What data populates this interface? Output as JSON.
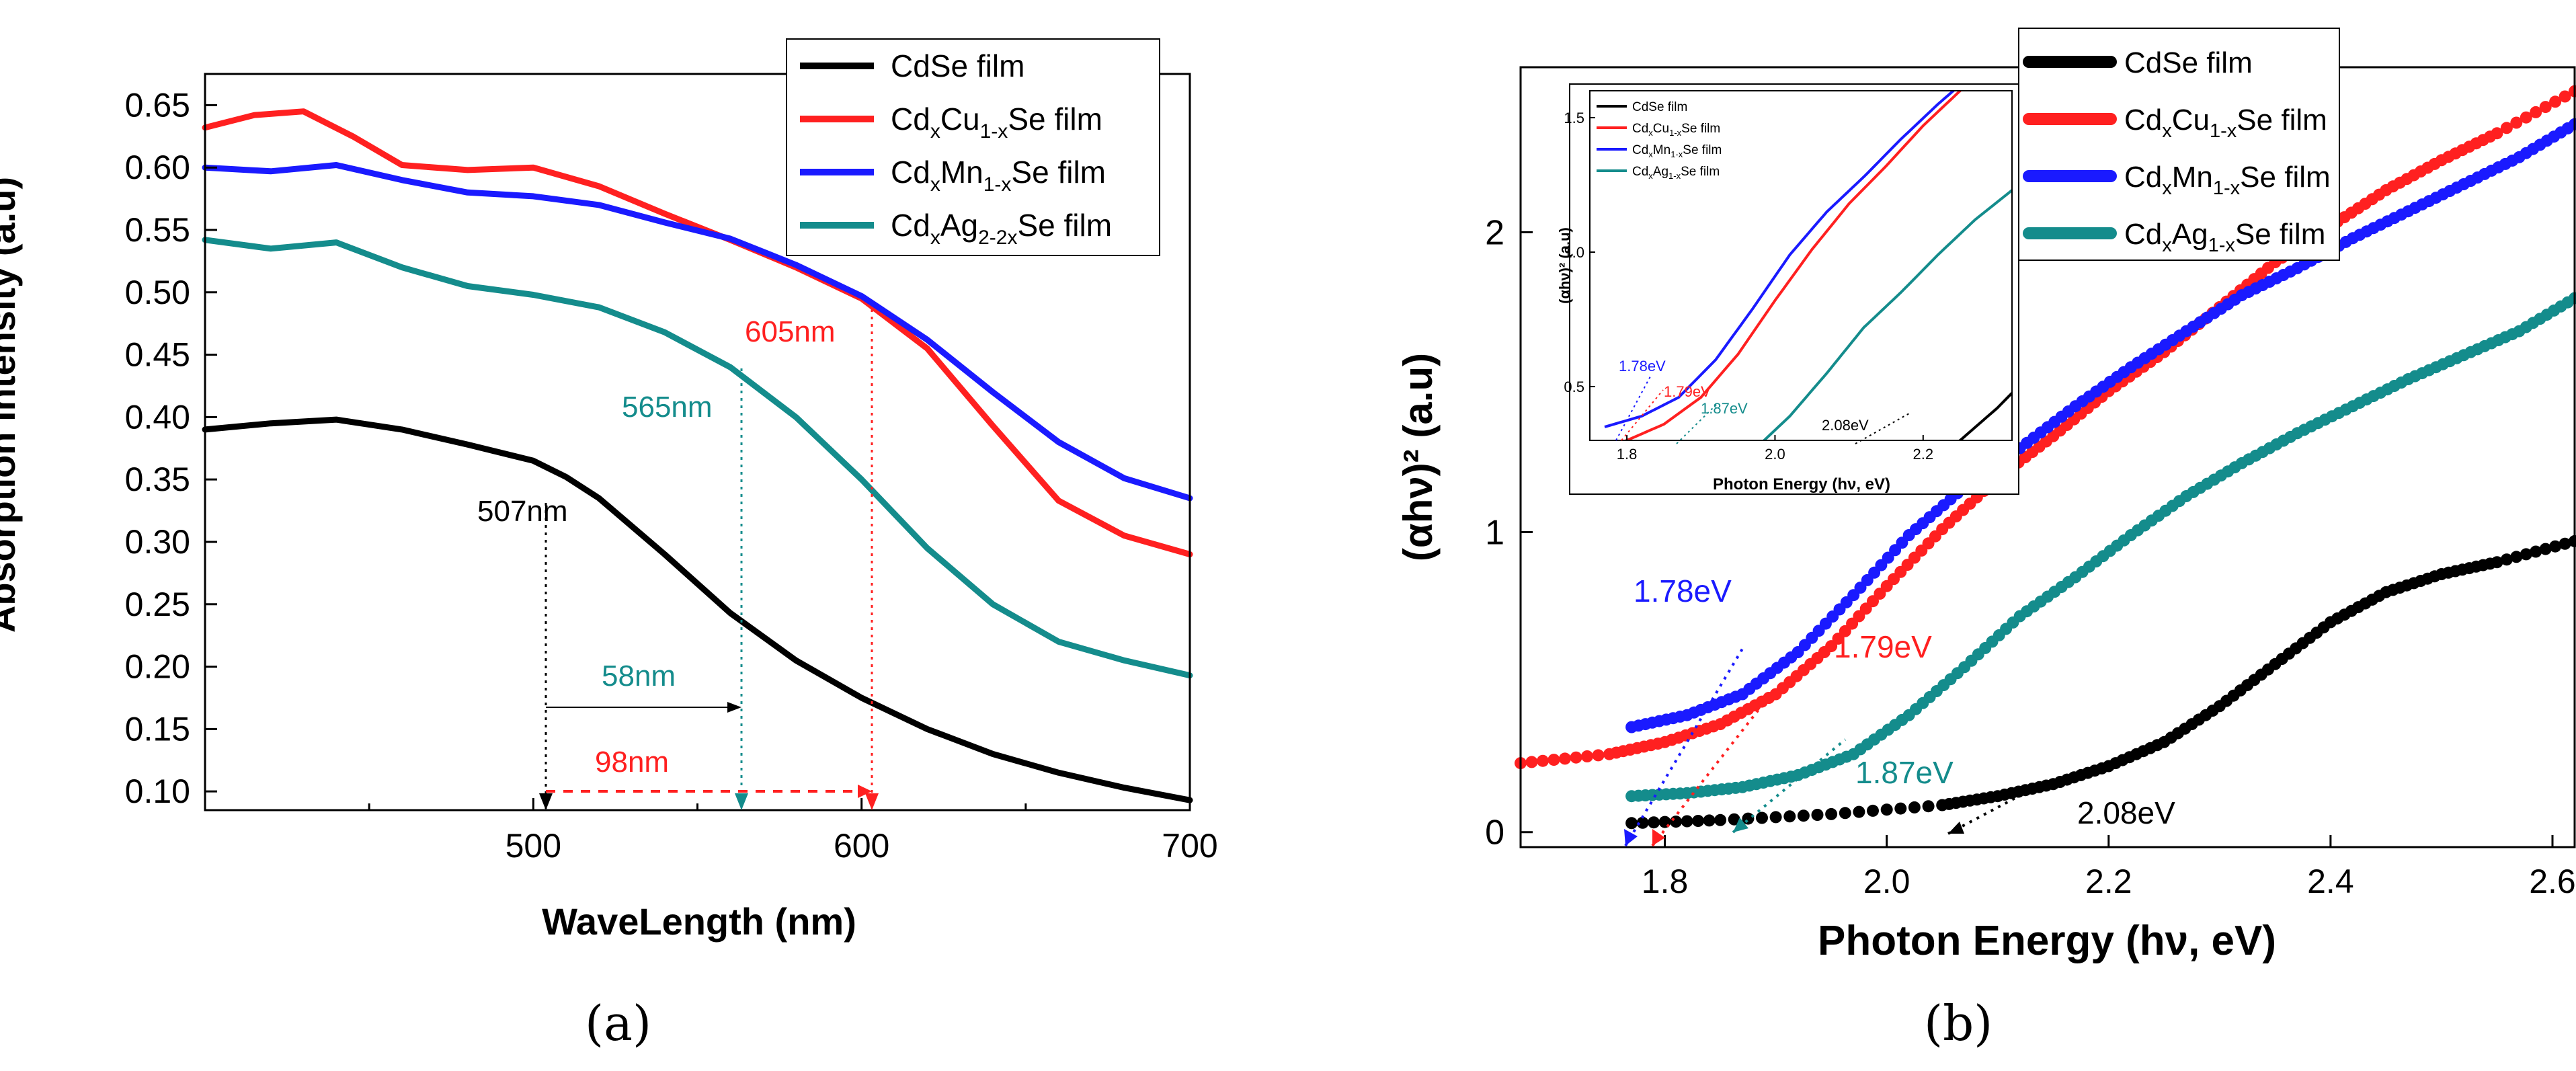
{
  "chart_data": [
    {
      "panel_label": "(a)",
      "type": "line",
      "xlabel": "WaveLength (nm)",
      "ylabel": "Absorption intensity (a.u)",
      "xlim": [
        400,
        700
      ],
      "ylim": [
        0.085,
        0.675
      ],
      "xticks": [
        "500",
        "600",
        "700"
      ],
      "xtick_values": [
        500,
        600,
        700
      ],
      "yticks": [
        "0.10",
        "0.15",
        "0.20",
        "0.25",
        "0.30",
        "0.35",
        "0.40",
        "0.45",
        "0.50",
        "0.55",
        "0.60",
        "0.65"
      ],
      "ytick_values": [
        0.1,
        0.15,
        0.2,
        0.25,
        0.3,
        0.35,
        0.4,
        0.45,
        0.5,
        0.55,
        0.6,
        0.65
      ],
      "legend_position": "top-right",
      "series": [
        {
          "name": "CdSe film",
          "legend": {
            "pre": "CdSe film",
            "sub1": "",
            "mid": "",
            "sub2": "",
            "post": ""
          },
          "color": "#000000",
          "x": [
            400,
            420,
            440,
            460,
            480,
            500,
            510,
            520,
            540,
            560,
            580,
            600,
            620,
            640,
            660,
            680,
            700
          ],
          "y": [
            0.39,
            0.395,
            0.398,
            0.39,
            0.378,
            0.365,
            0.352,
            0.335,
            0.29,
            0.243,
            0.205,
            0.175,
            0.15,
            0.13,
            0.115,
            0.103,
            0.093
          ]
        },
        {
          "name": "CdxCu1-xSe film",
          "legend": {
            "pre": "Cd",
            "sub1": "x",
            "mid": "Cu",
            "sub2": "1-x",
            "post": "Se film"
          },
          "color": "#ff2020",
          "x": [
            400,
            415,
            430,
            445,
            460,
            480,
            500,
            520,
            540,
            560,
            580,
            600,
            620,
            640,
            660,
            680,
            700
          ],
          "y": [
            0.632,
            0.642,
            0.645,
            0.625,
            0.602,
            0.598,
            0.6,
            0.585,
            0.563,
            0.542,
            0.52,
            0.495,
            0.455,
            0.393,
            0.333,
            0.305,
            0.29
          ]
        },
        {
          "name": "CdxMn1-xSe film",
          "legend": {
            "pre": "Cd",
            "sub1": "x",
            "mid": "Mn",
            "sub2": "1-x",
            "post": "Se film"
          },
          "color": "#1a1aff",
          "x": [
            400,
            420,
            440,
            460,
            480,
            500,
            520,
            540,
            560,
            580,
            600,
            620,
            640,
            660,
            680,
            700
          ],
          "y": [
            0.6,
            0.597,
            0.602,
            0.59,
            0.58,
            0.577,
            0.57,
            0.556,
            0.543,
            0.522,
            0.497,
            0.462,
            0.42,
            0.38,
            0.351,
            0.335
          ]
        },
        {
          "name": "CdxAg2-2xSe film",
          "legend": {
            "pre": "Cd",
            "sub1": "x",
            "mid": "Ag",
            "sub2": "2-2x",
            "post": "Se film"
          },
          "color": "#148c8c",
          "x": [
            400,
            420,
            440,
            460,
            480,
            500,
            520,
            540,
            560,
            580,
            600,
            620,
            640,
            660,
            680,
            700
          ],
          "y": [
            0.542,
            0.535,
            0.54,
            0.52,
            0.505,
            0.498,
            0.488,
            0.468,
            0.44,
            0.4,
            0.35,
            0.295,
            0.25,
            0.22,
            0.205,
            0.193
          ]
        }
      ],
      "annotations": [
        {
          "text": "507nm",
          "x": 507,
          "color": "#000000"
        },
        {
          "text": "565nm",
          "x": 565,
          "color": "#148c8c"
        },
        {
          "text": "605nm",
          "x": 605,
          "color": "#ff2020"
        },
        {
          "text": "58nm",
          "color": "#148c8c"
        },
        {
          "text": "98nm",
          "color": "#ff2020"
        }
      ]
    },
    {
      "panel_label": "(b)",
      "type": "scatter",
      "xlabel": "Photon Energy (hν, eV)",
      "ylabel": "(αhν)² (a.u)",
      "xlim": [
        1.67,
        2.62
      ],
      "ylim": [
        -0.05,
        2.55
      ],
      "xticks": [
        "1.8",
        "2.0",
        "2.2",
        "2.4",
        "2.6"
      ],
      "xtick_values": [
        1.8,
        2.0,
        2.2,
        2.4,
        2.6
      ],
      "yticks": [
        "0",
        "1",
        "2"
      ],
      "ytick_values": [
        0,
        1,
        2
      ],
      "legend_position": "top-right",
      "series": [
        {
          "name": "CdSe film",
          "legend": {
            "pre": "CdSe film",
            "sub1": "",
            "mid": "",
            "sub2": "",
            "post": ""
          },
          "color": "#000000",
          "x": [
            1.77,
            1.85,
            1.95,
            2.05,
            2.1,
            2.15,
            2.2,
            2.25,
            2.3,
            2.35,
            2.4,
            2.45,
            2.5,
            2.55,
            2.62
          ],
          "y": [
            0.03,
            0.04,
            0.06,
            0.09,
            0.12,
            0.16,
            0.22,
            0.3,
            0.42,
            0.56,
            0.7,
            0.8,
            0.86,
            0.9,
            0.97
          ]
        },
        {
          "name": "CdxCu1-xSe film",
          "legend": {
            "pre": "Cd",
            "sub1": "x",
            "mid": "Cu",
            "sub2": "1-x",
            "post": "Se film"
          },
          "color": "#ff2020",
          "x": [
            1.67,
            1.75,
            1.8,
            1.85,
            1.9,
            1.95,
            2.0,
            2.05,
            2.1,
            2.15,
            2.2,
            2.25,
            2.3,
            2.35,
            2.4,
            2.45,
            2.5,
            2.55,
            2.62
          ],
          "y": [
            0.23,
            0.26,
            0.3,
            0.36,
            0.46,
            0.62,
            0.82,
            1.01,
            1.18,
            1.32,
            1.47,
            1.6,
            1.75,
            1.9,
            2.02,
            2.14,
            2.24,
            2.33,
            2.47
          ]
        },
        {
          "name": "CdxMn1-xSe film",
          "legend": {
            "pre": "Cd",
            "sub1": "x",
            "mid": "Mn",
            "sub2": "1-x",
            "post": "Se film"
          },
          "color": "#1a1aff",
          "x": [
            1.77,
            1.82,
            1.87,
            1.92,
            1.97,
            2.02,
            2.07,
            2.12,
            2.17,
            2.22,
            2.27,
            2.32,
            2.37,
            2.42,
            2.47,
            2.52,
            2.57,
            2.62
          ],
          "y": [
            0.35,
            0.39,
            0.46,
            0.6,
            0.79,
            0.99,
            1.15,
            1.28,
            1.42,
            1.55,
            1.67,
            1.79,
            1.88,
            1.98,
            2.07,
            2.16,
            2.25,
            2.36
          ]
        },
        {
          "name": "CdxAg1-xSe film",
          "legend": {
            "pre": "Cd",
            "sub1": "x",
            "mid": "Ag",
            "sub2": "1-x",
            "post": "Se film"
          },
          "color": "#148c8c",
          "x": [
            1.77,
            1.82,
            1.87,
            1.92,
            1.97,
            2.02,
            2.07,
            2.12,
            2.17,
            2.22,
            2.27,
            2.32,
            2.37,
            2.42,
            2.47,
            2.52,
            2.57,
            2.62
          ],
          "y": [
            0.12,
            0.13,
            0.15,
            0.19,
            0.26,
            0.39,
            0.55,
            0.72,
            0.85,
            0.99,
            1.12,
            1.23,
            1.33,
            1.42,
            1.51,
            1.59,
            1.67,
            1.78
          ]
        }
      ],
      "annotations": [
        {
          "text": "1.78eV",
          "x": 1.78,
          "color": "#1a1aff"
        },
        {
          "text": "1.79eV",
          "x": 1.79,
          "color": "#ff2020"
        },
        {
          "text": "1.87eV",
          "x": 1.87,
          "color": "#148c8c"
        },
        {
          "text": "2.08eV",
          "x": 2.08,
          "color": "#000000"
        }
      ],
      "inset": {
        "xlabel": "Photon Energy (hν, eV)",
        "ylabel": "(αhν)² (a.u)",
        "xlim": [
          1.75,
          2.32
        ],
        "ylim": [
          0.3,
          1.6
        ],
        "xticks": [
          "1.8",
          "2.0",
          "2.2"
        ],
        "xtick_values": [
          1.8,
          2.0,
          2.2
        ],
        "yticks": [
          "0.5",
          "1.0",
          "1.5"
        ],
        "ytick_values": [
          0.5,
          1.0,
          1.5
        ],
        "legend": [
          {
            "pre": "CdSe film",
            "sub1": "",
            "mid": "",
            "sub2": "",
            "post": "",
            "color": "#000000"
          },
          {
            "pre": "Cd",
            "sub1": "x",
            "mid": "Cu",
            "sub2": "1-x",
            "post": "Se film",
            "color": "#ff2020"
          },
          {
            "pre": "Cd",
            "sub1": "x",
            "mid": "Mn",
            "sub2": "1-x",
            "post": "Se film",
            "color": "#1a1aff"
          },
          {
            "pre": "Cd",
            "sub1": "x",
            "mid": "Ag",
            "sub2": "1-x",
            "post": "Se film",
            "color": "#148c8c"
          }
        ],
        "annotations": [
          {
            "text": "1.78eV",
            "color": "#1a1aff"
          },
          {
            "text": "1.79eV",
            "color": "#ff2020"
          },
          {
            "text": "1.87eV",
            "color": "#148c8c"
          },
          {
            "text": "2.08eV",
            "color": "#000000"
          }
        ]
      }
    }
  ]
}
